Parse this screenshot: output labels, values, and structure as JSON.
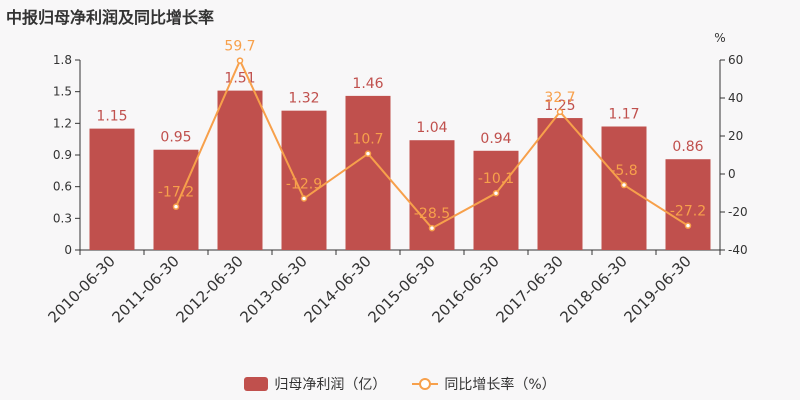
{
  "chart_data": {
    "type": "bar",
    "title": "中报归母净利润及同比增长率",
    "categories": [
      "2010-06-30",
      "2011-06-30",
      "2012-06-30",
      "2013-06-30",
      "2014-06-30",
      "2015-06-30",
      "2016-06-30",
      "2017-06-30",
      "2018-06-30",
      "2019-06-30"
    ],
    "series": [
      {
        "name": "归母净利润（亿）",
        "type": "bar",
        "axis": "left",
        "color": "#c0504d",
        "values": [
          1.15,
          0.95,
          1.51,
          1.32,
          1.46,
          1.04,
          0.94,
          1.25,
          1.17,
          0.86
        ],
        "labels": [
          "1.15",
          "0.95",
          "1.51",
          "1.32",
          "1.46",
          "1.04",
          "0.94",
          "1.25",
          "1.17",
          "0.86"
        ]
      },
      {
        "name": "同比增长率（%）",
        "type": "line",
        "axis": "right",
        "color": "#f7a04b",
        "values": [
          null,
          -17.2,
          59.7,
          -12.9,
          10.7,
          -28.5,
          -10.1,
          32.7,
          -5.8,
          -27.2
        ],
        "labels": [
          "",
          "-17.2",
          "59.7",
          "-12.9",
          "10.7",
          "-28.5",
          "-10.1",
          "32.7",
          "-5.8",
          "-27.2"
        ]
      }
    ],
    "left_axis": {
      "ylim": [
        0,
        1.8
      ],
      "ticks": [
        "0",
        "0.3",
        "0.6",
        "0.9",
        "1.2",
        "1.5",
        "1.8"
      ]
    },
    "right_axis": {
      "ylim": [
        -40,
        60
      ],
      "ticks": [
        "-40",
        "-20",
        "0",
        "20",
        "40",
        "60"
      ],
      "unit": "%"
    },
    "legend_position": "bottom-center",
    "grid": false
  }
}
